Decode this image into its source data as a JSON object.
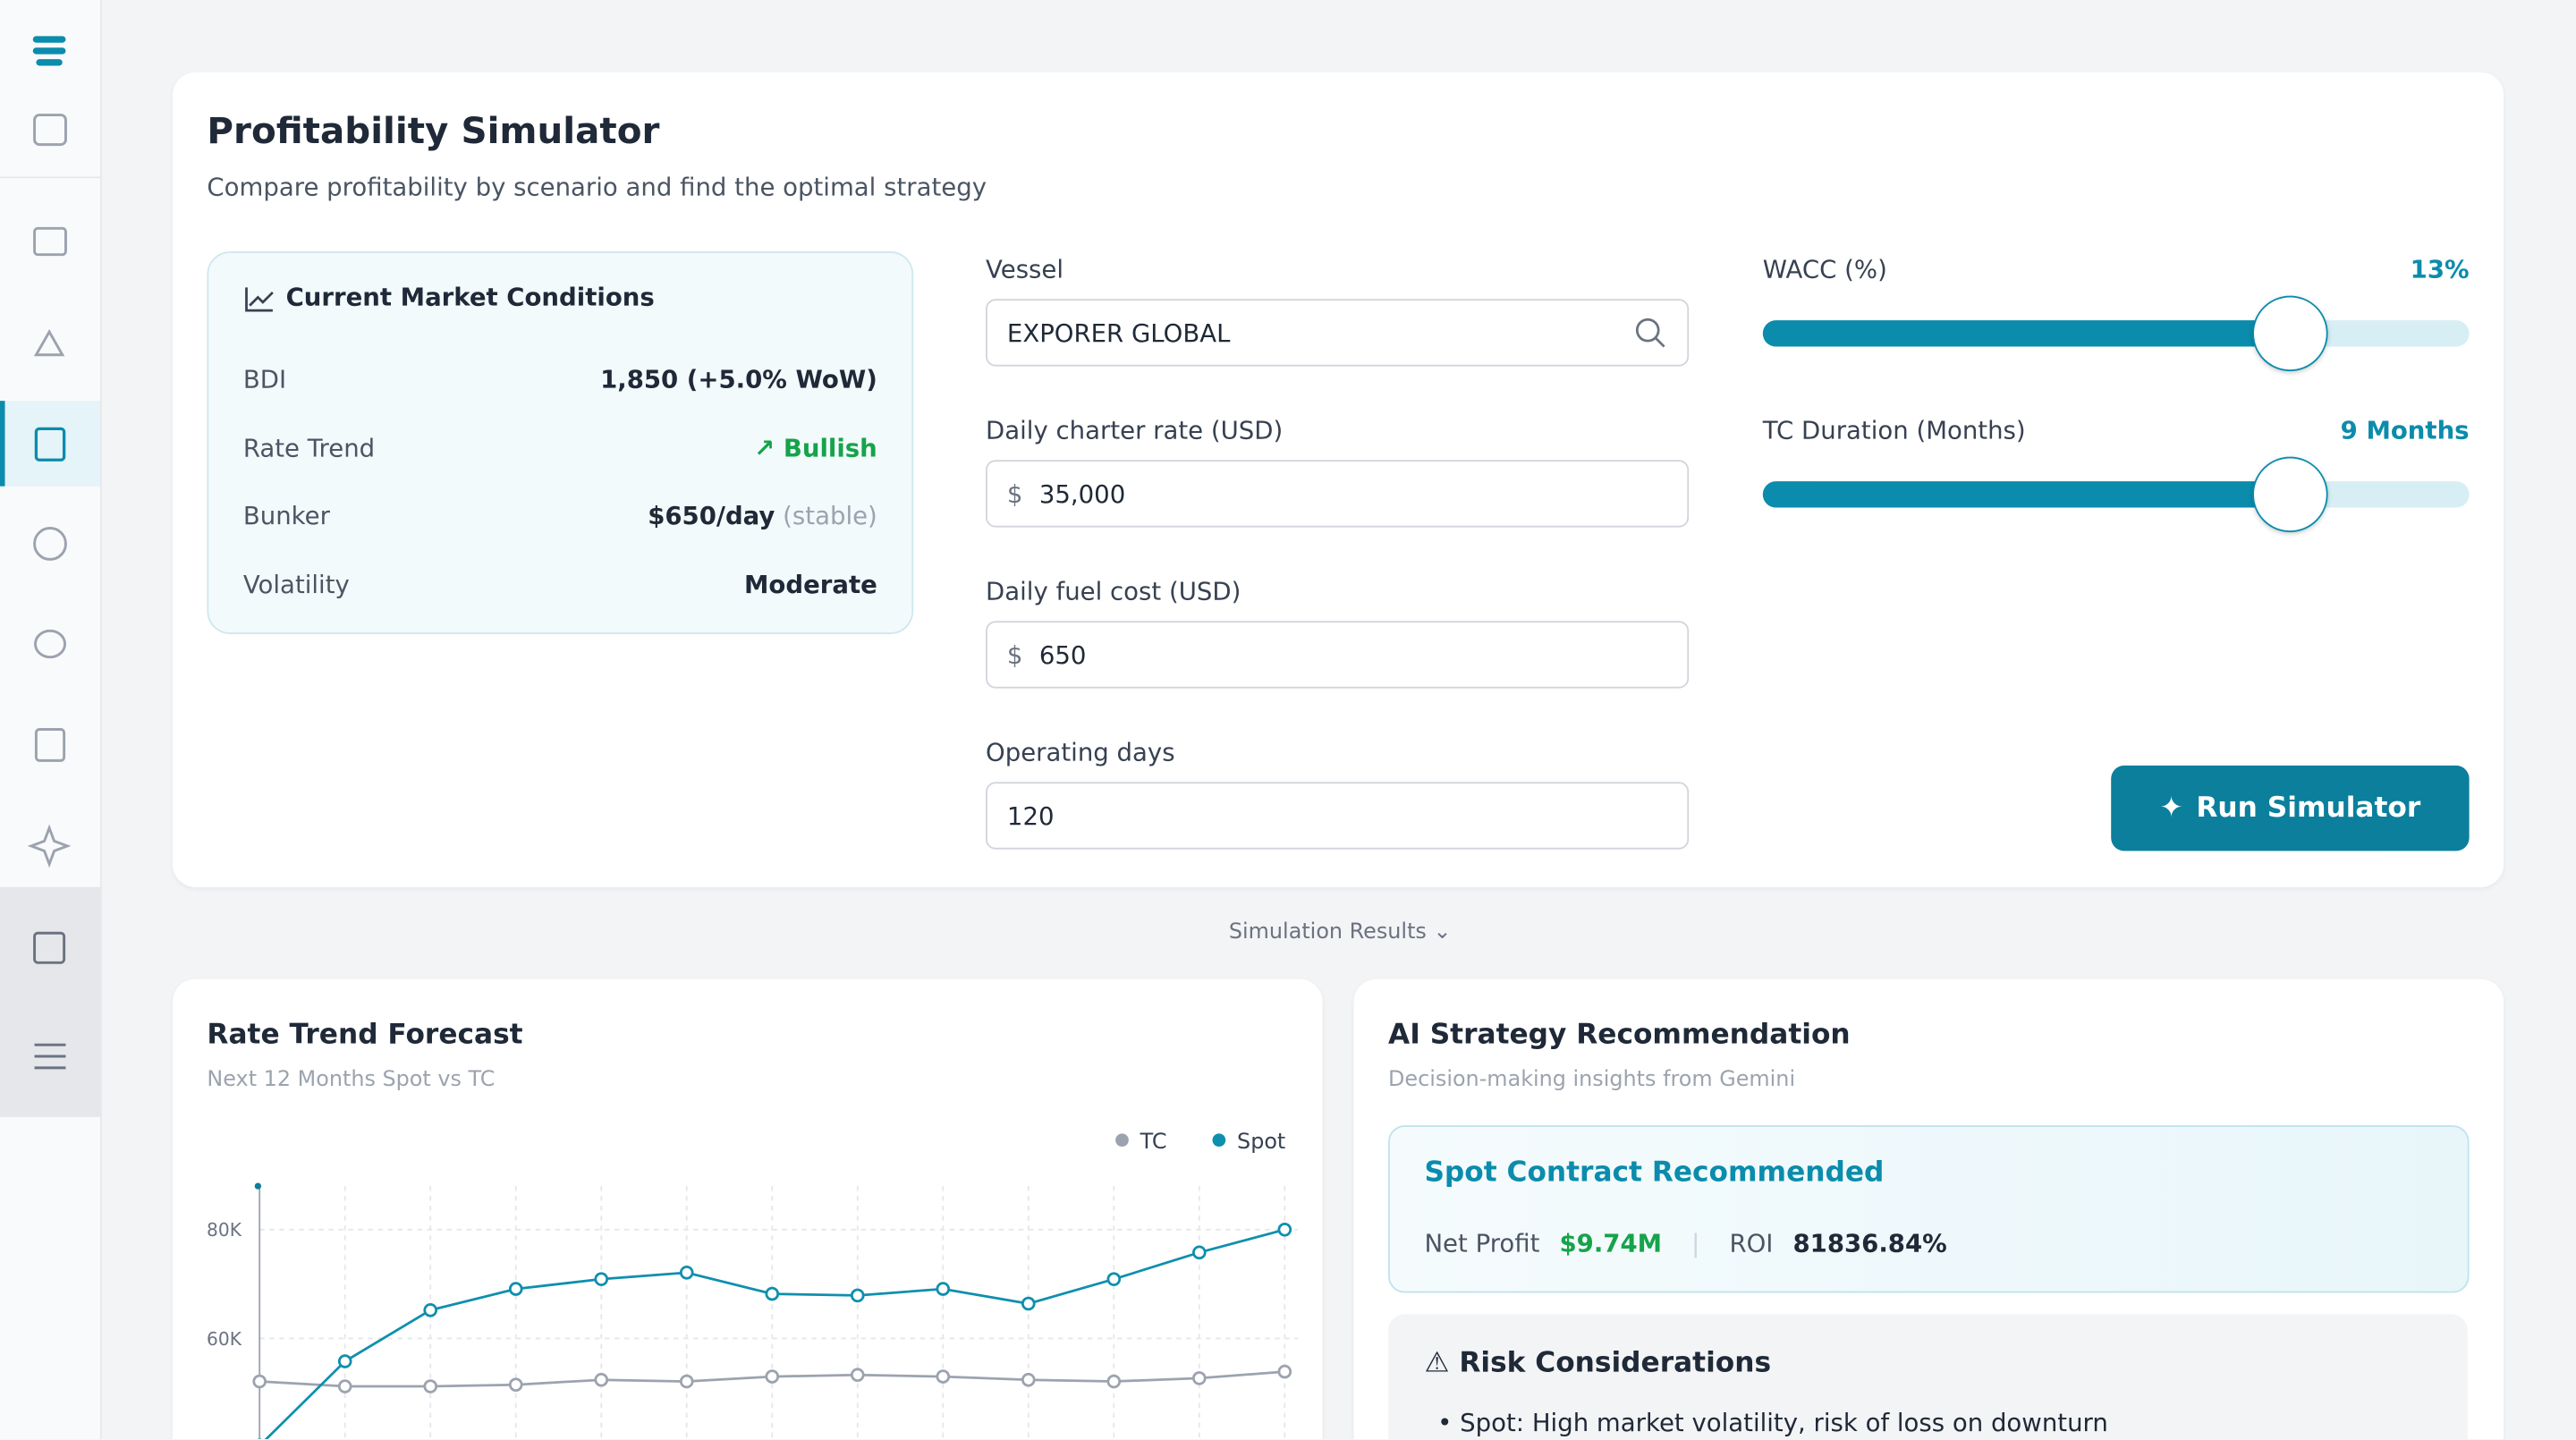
{
  "header": {
    "title": "Profitability Simulator",
    "subtitle": "Compare profitability by scenario and find the optimal strategy"
  },
  "market": {
    "title": "Current Market Conditions",
    "rows": [
      {
        "label": "BDI",
        "value": "1,850 (+5.0% WoW)"
      },
      {
        "label": "Rate Trend",
        "value": "Bullish"
      },
      {
        "label": "Bunker",
        "value": "$650/day",
        "note": "(stable)"
      },
      {
        "label": "Volatility",
        "value": "Moderate"
      }
    ]
  },
  "form": {
    "vessel": {
      "label": "Vessel",
      "value": "EXPORER GLOBAL"
    },
    "charter": {
      "label": "Daily charter rate (USD)",
      "value": "35,000"
    },
    "fuel": {
      "label": "Daily fuel cost (USD)",
      "value": "650"
    },
    "days": {
      "label": "Operating days",
      "value": "120"
    }
  },
  "sliders": [
    {
      "label": "WACC (%)",
      "value": "13%"
    },
    {
      "label": "TC Duration (Months)",
      "value": "9 Months"
    }
  ],
  "run_button": "Run Simulator",
  "results_toggle": "Simulation Results",
  "rate_chart": {
    "type": "line",
    "title": "Rate Trend Forecast",
    "subtitle": "Next 12 Months Spot vs TC",
    "series": [
      {
        "name": "TC",
        "color": "#9ca3af",
        "values": [
          52100,
          51200,
          51200,
          51500,
          52400,
          52100,
          53000,
          53300,
          53000,
          52400,
          52100,
          52700,
          53900
        ]
      },
      {
        "name": "Spot",
        "color": "#0f8fae",
        "values": [
          40300,
          55800,
          65200,
          69100,
          70900,
          72100,
          68200,
          67900,
          69100,
          66400,
          70900,
          75800,
          80000
        ]
      }
    ],
    "ylim": [
      40000,
      88000
    ],
    "yticks": [
      {
        "value": 80000,
        "label": "80K"
      },
      {
        "value": 60000,
        "label": "60K"
      }
    ],
    "grid": true
  },
  "ai": {
    "title": "AI Strategy Recommendation",
    "subtitle": "Decision-making insights from Gemini",
    "recommendation": "Spot Contract Recommended",
    "metrics": [
      {
        "label": "Net Profit",
        "value": "$9.74M"
      },
      {
        "label": "ROI",
        "value": "81836.84%"
      }
    ],
    "risk": {
      "title": "Risk Considerations",
      "items": [
        "Spot: High market volatility, risk of loss on downturn"
      ]
    }
  }
}
